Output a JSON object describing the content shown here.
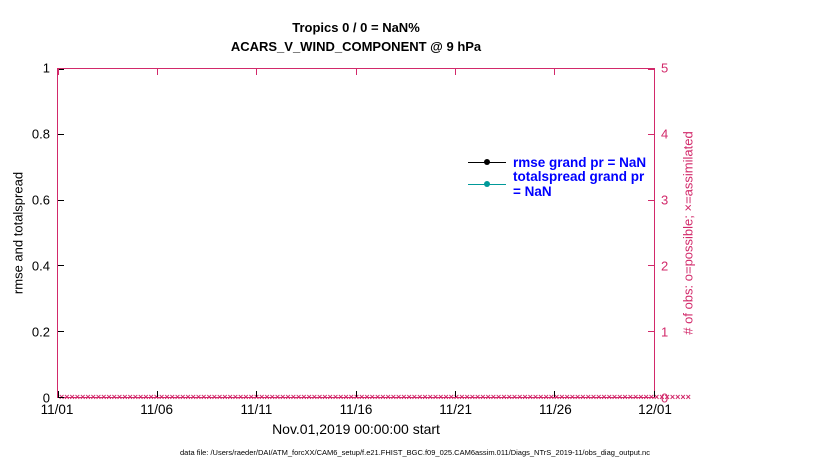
{
  "title": {
    "line1": "Tropics 0 / 0 = NaN%",
    "line2": "ACARS_V_WIND_COMPONENT @ 9 hPa"
  },
  "axes": {
    "left": {
      "label": "rmse and totalspread",
      "ticks": [
        "0",
        "0.2",
        "0.4",
        "0.6",
        "0.8",
        "1"
      ],
      "lim": [
        0,
        1
      ]
    },
    "right": {
      "label": "# of obs: o=possible; ×=assimilated",
      "ticks": [
        "0",
        "1",
        "2",
        "3",
        "4",
        "5"
      ],
      "lim": [
        0,
        5
      ]
    },
    "x": {
      "label": "Nov.01,2019 00:00:00 start",
      "ticks": [
        "11/01",
        "11/06",
        "11/11",
        "11/16",
        "11/21",
        "11/26",
        "12/01"
      ]
    }
  },
  "legend": [
    {
      "label": "rmse grand pr = NaN",
      "series_color": "#000000"
    },
    {
      "label": "totalspread grand pr = NaN",
      "series_color": "#009999"
    }
  ],
  "footer": "data file: /Users/raeder/DAI/ATM_forcXX/CAM6_setup/f.e21.FHIST_BGC.f09_025.CAM6assim.011/Diags_NTrS_2019-11/obs_diag_output.nc",
  "colors": {
    "obs_axis": "#d2296a",
    "legend_text": "#0000ff",
    "rmse": "#000000",
    "totalspread": "#009999"
  },
  "chart_data": {
    "type": "line",
    "title": "Tropics 0 / 0 = NaN% — ACARS_V_WIND_COMPONENT @ 9 hPa",
    "xlabel": "Nov.01,2019 00:00:00 start",
    "ylabel_left": "rmse and totalspread",
    "ylabel_right": "# of obs: o=possible; ×=assimilated",
    "x_tick_labels": [
      "11/01",
      "11/06",
      "11/11",
      "11/16",
      "11/21",
      "11/26",
      "12/01"
    ],
    "x_range_days": [
      0,
      30
    ],
    "ylim_left": [
      0,
      1
    ],
    "ylim_right": [
      0,
      5
    ],
    "grid": false,
    "legend_position": "upper center-right",
    "series": [
      {
        "name": "rmse",
        "axis": "left",
        "grand_mean": "NaN",
        "plotted": false
      },
      {
        "name": "totalspread",
        "axis": "left",
        "grand_mean": "NaN",
        "plotted": false
      },
      {
        "name": "possible_obs (o)",
        "axis": "right",
        "constant_value": 0
      },
      {
        "name": "assimilated_obs (×)",
        "axis": "right",
        "constant_value": 0
      }
    ],
    "marker_count": 120
  }
}
